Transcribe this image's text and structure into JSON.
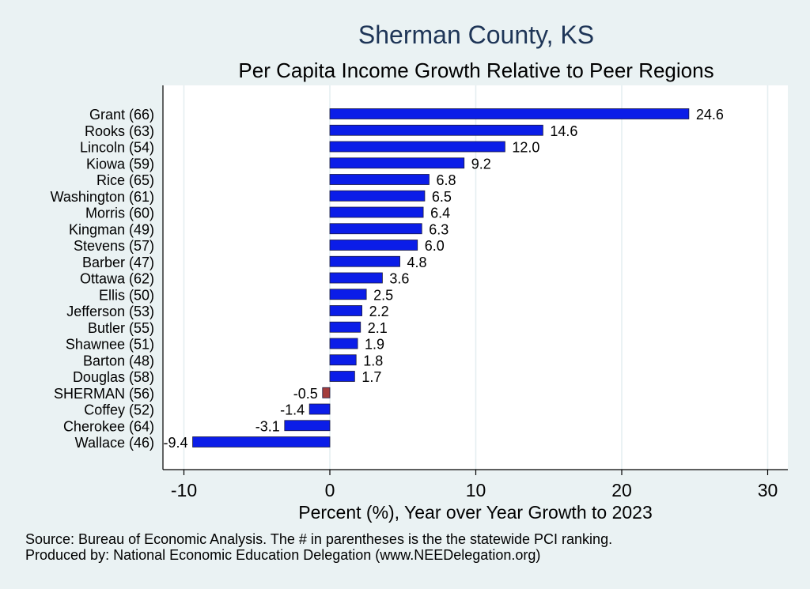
{
  "chart_data": {
    "type": "bar",
    "orientation": "horizontal",
    "title": "Sherman County, KS",
    "subtitle": "Per Capita Income Growth Relative to Peer Regions",
    "xlabel": "Percent (%), Year over Year Growth to 2023",
    "xlim": [
      -11,
      31.5
    ],
    "xticks": [
      -10,
      0,
      10,
      20,
      30
    ],
    "grid": true,
    "categories": [
      "Grant (66)",
      "Rooks (63)",
      "Lincoln (54)",
      "Kiowa (59)",
      "Rice (65)",
      "Washington (61)",
      "Morris (60)",
      "Kingman (49)",
      "Stevens (57)",
      "Barber (47)",
      "Ottawa (62)",
      "Ellis (50)",
      "Jefferson (53)",
      "Butler (55)",
      "Shawnee (51)",
      "Barton (48)",
      "Douglas (58)",
      "SHERMAN (56)",
      "Coffey (52)",
      "Cherokee (64)",
      "Wallace (46)"
    ],
    "values": [
      24.6,
      14.6,
      12.0,
      9.2,
      6.8,
      6.5,
      6.4,
      6.3,
      6.0,
      4.8,
      3.6,
      2.5,
      2.2,
      2.1,
      1.9,
      1.8,
      1.7,
      -0.5,
      -1.4,
      -3.1,
      -9.4
    ],
    "value_labels": [
      "24.6",
      "14.6",
      "12.0",
      "9.2",
      "6.8",
      "6.5",
      "6.4",
      "6.3",
      "6.0",
      "4.8",
      "3.6",
      "2.5",
      "2.2",
      "2.1",
      "1.9",
      "1.8",
      "1.7",
      "-0.5",
      "-1.4",
      "-3.1",
      "-9.4"
    ],
    "highlight_category": "SHERMAN (56)",
    "colors": {
      "bar": "#0b1de8",
      "highlight": "#a33c3c",
      "background": "#eaf2f3",
      "plot_bg": "#ffffff",
      "grid": "#e4eef0"
    }
  },
  "notes": {
    "source": "Source: Bureau of Economic Analysis. The # in parentheses is the the statewide PCI ranking.",
    "producer": "Produced by: National Economic Education Delegation (www.NEEDelegation.org)"
  }
}
